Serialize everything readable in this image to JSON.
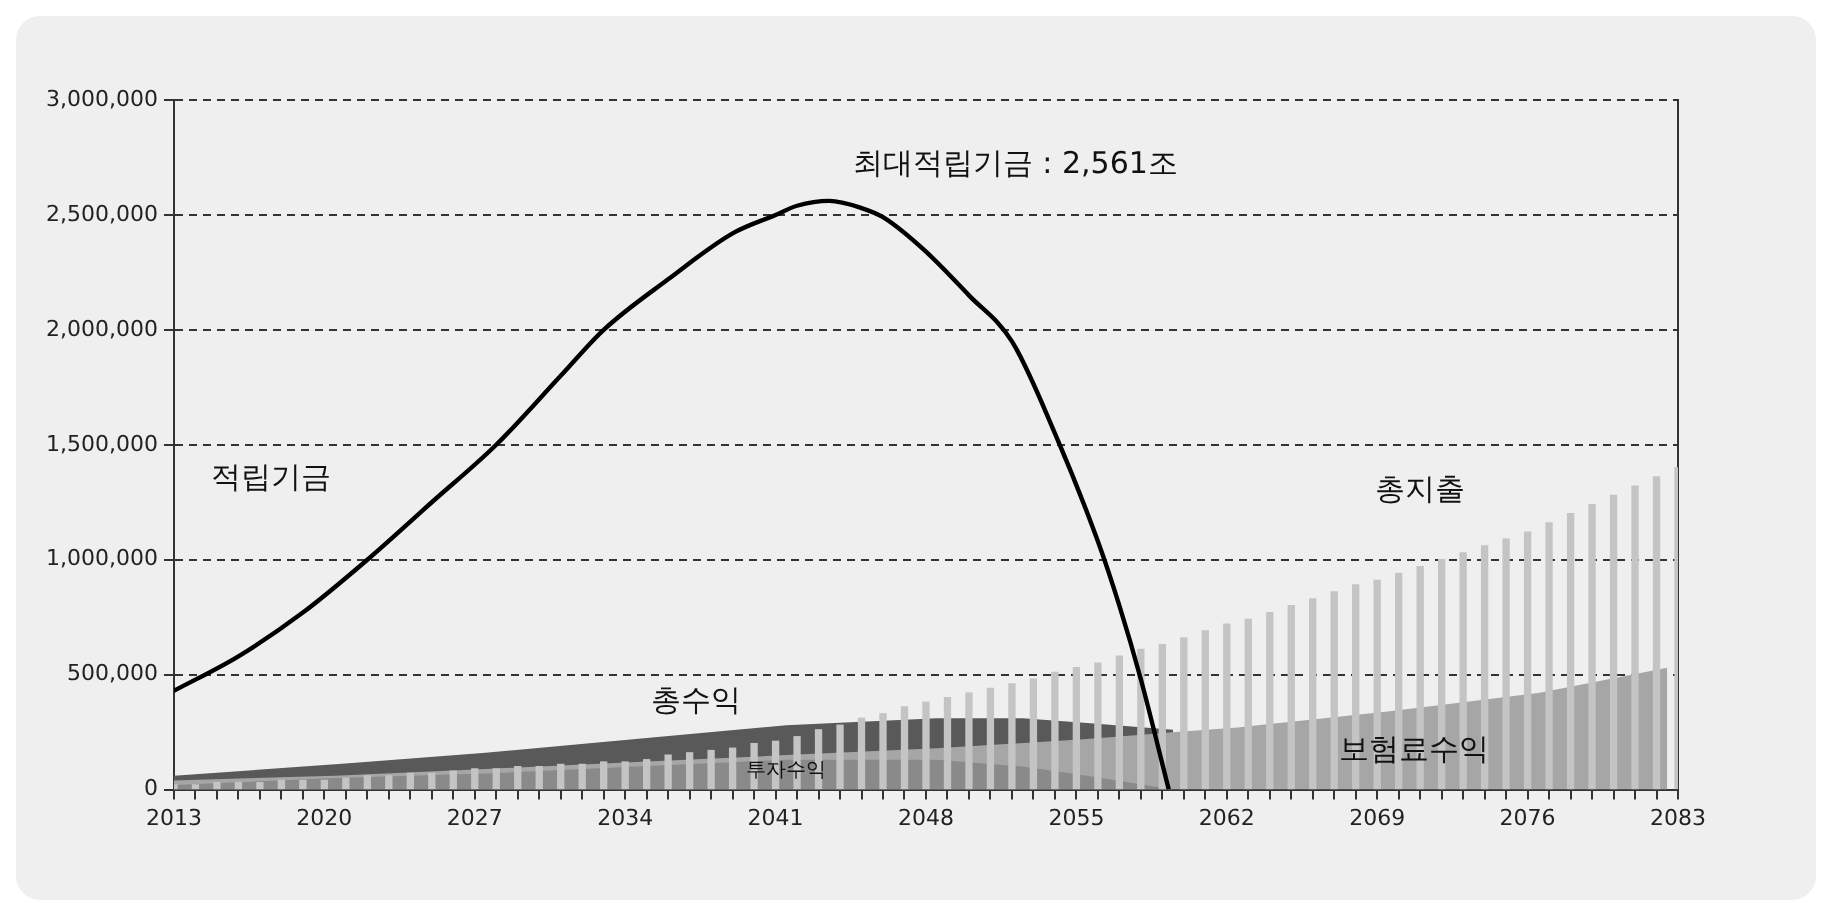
{
  "chart_data": {
    "type": "bar",
    "x": [
      2013,
      2014,
      2015,
      2016,
      2017,
      2018,
      2019,
      2020,
      2021,
      2022,
      2023,
      2024,
      2025,
      2026,
      2027,
      2028,
      2029,
      2030,
      2031,
      2032,
      2033,
      2034,
      2035,
      2036,
      2037,
      2038,
      2039,
      2040,
      2041,
      2042,
      2043,
      2044,
      2045,
      2046,
      2047,
      2048,
      2049,
      2050,
      2051,
      2052,
      2053,
      2054,
      2055,
      2056,
      2057,
      2058,
      2059,
      2060,
      2061,
      2062,
      2063,
      2064,
      2065,
      2066,
      2067,
      2068,
      2069,
      2070,
      2071,
      2072,
      2073,
      2074,
      2075,
      2076,
      2077,
      2078,
      2079,
      2080,
      2081,
      2082,
      2083
    ],
    "series": [
      {
        "name": "총수익",
        "type": "area",
        "color": "#595959",
        "x": [
          2013,
          2020.5,
          2027.5,
          2034.5,
          2041.5,
          2048.5,
          2052.5,
          2055.5,
          2059.5
        ],
        "values": [
          60000,
          110000,
          160000,
          220000,
          280000,
          310000,
          310000,
          290000,
          260000
        ]
      },
      {
        "name": "보험료수익",
        "type": "area",
        "color": "#a6a6a6",
        "x": [
          2013,
          2020.5,
          2027.5,
          2034.5,
          2041.5,
          2048.5,
          2055.5,
          2059.5,
          2062.5,
          2069.5,
          2076.5,
          2082.5
        ],
        "values": [
          40000,
          60000,
          90000,
          120000,
          150000,
          180000,
          220000,
          250000,
          270000,
          340000,
          420000,
          530000
        ]
      },
      {
        "name": "투자수익",
        "type": "area",
        "color": "#8a8a8a",
        "x": [
          2013,
          2020.5,
          2027.5,
          2034.5,
          2041.5,
          2045.5,
          2048.5,
          2052.5,
          2055.5,
          2059.5
        ],
        "values": [
          20000,
          50000,
          70000,
          100000,
          130000,
          130000,
          130000,
          100000,
          60000,
          0
        ]
      },
      {
        "name": "총지출",
        "color": "#c4c4c4",
        "values": [
          20000,
          20000,
          30000,
          30000,
          30000,
          40000,
          40000,
          40000,
          50000,
          60000,
          60000,
          70000,
          70000,
          80000,
          90000,
          90000,
          100000,
          100000,
          110000,
          110000,
          120000,
          120000,
          130000,
          150000,
          160000,
          170000,
          180000,
          200000,
          210000,
          230000,
          260000,
          280000,
          310000,
          330000,
          360000,
          380000,
          400000,
          420000,
          440000,
          460000,
          480000,
          510000,
          530000,
          550000,
          580000,
          610000,
          630000,
          660000,
          690000,
          720000,
          740000,
          770000,
          800000,
          830000,
          860000,
          890000,
          910000,
          940000,
          970000,
          1000000,
          1030000,
          1060000,
          1090000,
          1120000,
          1160000,
          1200000,
          1240000,
          1280000,
          1320000,
          1360000,
          1400000
        ]
      },
      {
        "name": "적립기금",
        "type": "line",
        "color": "#000000",
        "x": [
          2013,
          2016,
          2019,
          2022,
          2025,
          2028,
          2031,
          2033,
          2036,
          2039,
          2041,
          2042,
          2043.5,
          2045,
          2046,
          2048,
          2050,
          2052,
          2054,
          2056,
          2057,
          2058,
          2059.3
        ],
        "values": [
          430000,
          580000,
          770000,
          1000000,
          1250000,
          1500000,
          1800000,
          2000000,
          2220000,
          2420000,
          2500000,
          2540000,
          2561000,
          2530000,
          2490000,
          2340000,
          2150000,
          1950000,
          1550000,
          1080000,
          800000,
          480000,
          0
        ]
      }
    ],
    "xlim": [
      2013,
      2083
    ],
    "xticks": [
      2013,
      {
        "value": 2014,
        "label": null
      },
      {
        "value": 2015,
        "label": null
      },
      {
        "value": 2016,
        "label": null
      },
      {
        "value": 2017,
        "label": null
      },
      {
        "value": 2018,
        "label": null
      },
      {
        "value": 2019,
        "label": null
      },
      2020,
      {
        "value": 2021,
        "label": null
      },
      {
        "value": 2022,
        "label": null
      },
      {
        "value": 2023,
        "label": null
      },
      {
        "value": 2024,
        "label": null
      },
      {
        "value": 2025,
        "label": null
      },
      {
        "value": 2026,
        "label": null
      },
      2027,
      {
        "value": 2028,
        "label": null
      },
      {
        "value": 2029,
        "label": null
      },
      {
        "value": 2030,
        "label": null
      },
      {
        "value": 2031,
        "label": null
      },
      {
        "value": 2032,
        "label": null
      },
      {
        "value": 2033,
        "label": null
      },
      2034,
      {
        "value": 2035,
        "label": null
      },
      {
        "value": 2036,
        "label": null
      },
      {
        "value": 2037,
        "label": null
      },
      {
        "value": 2038,
        "label": null
      },
      {
        "value": 2039,
        "label": null
      },
      {
        "value": 2040,
        "label": null
      },
      2041,
      {
        "value": 2042,
        "label": null
      },
      {
        "value": 2043,
        "label": null
      },
      {
        "value": 2044,
        "label": null
      },
      {
        "value": 2045,
        "label": null
      },
      {
        "value": 2046,
        "label": null
      },
      {
        "value": 2047,
        "label": null
      },
      2048,
      {
        "value": 2049,
        "label": null
      },
      {
        "value": 2050,
        "label": null
      },
      {
        "value": 2051,
        "label": null
      },
      {
        "value": 2052,
        "label": null
      },
      {
        "value": 2053,
        "label": null
      },
      {
        "value": 2054,
        "label": null
      },
      2055,
      {
        "value": 2056,
        "label": null
      },
      {
        "value": 2057,
        "label": null
      },
      {
        "value": 2058,
        "label": null
      },
      {
        "value": 2059,
        "label": null
      },
      {
        "value": 2060,
        "label": null
      },
      {
        "value": 2061,
        "label": null
      },
      2062,
      {
        "value": 2063,
        "label": null
      },
      {
        "value": 2064,
        "label": null
      },
      {
        "value": 2065,
        "label": null
      },
      {
        "value": 2066,
        "label": null
      },
      {
        "value": 2067,
        "label": null
      },
      {
        "value": 2068,
        "label": null
      },
      2069,
      {
        "value": 2070,
        "label": null
      },
      {
        "value": 2071,
        "label": null
      },
      {
        "value": 2072,
        "label": null
      },
      {
        "value": 2073,
        "label": null
      },
      {
        "value": 2074,
        "label": null
      },
      {
        "value": 2075,
        "label": null
      },
      2076,
      {
        "value": 2077,
        "label": null
      },
      {
        "value": 2078,
        "label": null
      },
      {
        "value": 2079,
        "label": null
      },
      {
        "value": 2080,
        "label": null
      },
      {
        "value": 2081,
        "label": null
      },
      {
        "value": 2082,
        "label": null
      },
      2083
    ],
    "ylim": [
      0,
      3000000
    ],
    "yticks": [
      0,
      {
        "value": 500000,
        "label": "500,000"
      },
      {
        "value": 1000000,
        "label": "1,000,000"
      },
      {
        "value": 1500000,
        "label": "1,500,000"
      },
      {
        "value": 2000000,
        "label": "2,000,000"
      },
      {
        "value": 2500000,
        "label": "2,500,000"
      },
      {
        "value": 3000000,
        "label": "3,000,000"
      }
    ],
    "grid": "y",
    "line_style": "solid",
    "marker": "none",
    "legend": false,
    "annotations": [
      {
        "text": "최대적립기금 : 2,561조",
        "x": 2043.5,
        "y": 2561000
      }
    ]
  }
}
